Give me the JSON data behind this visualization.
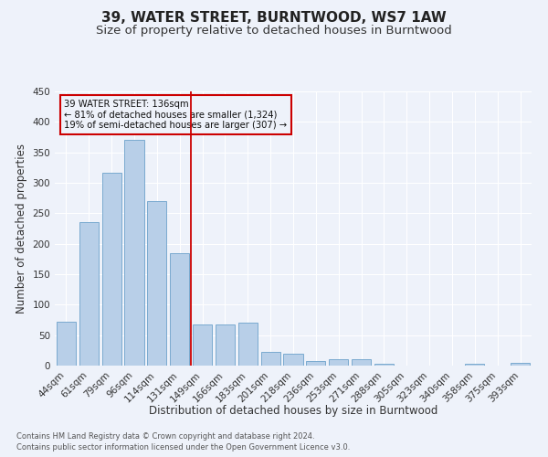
{
  "title": "39, WATER STREET, BURNTWOOD, WS7 1AW",
  "subtitle": "Size of property relative to detached houses in Burntwood",
  "xlabel": "Distribution of detached houses by size in Burntwood",
  "ylabel": "Number of detached properties",
  "categories": [
    "44sqm",
    "61sqm",
    "79sqm",
    "96sqm",
    "114sqm",
    "131sqm",
    "149sqm",
    "166sqm",
    "183sqm",
    "201sqm",
    "218sqm",
    "236sqm",
    "253sqm",
    "271sqm",
    "288sqm",
    "305sqm",
    "323sqm",
    "340sqm",
    "358sqm",
    "375sqm",
    "393sqm"
  ],
  "values": [
    72,
    236,
    317,
    370,
    270,
    184,
    68,
    68,
    70,
    23,
    19,
    7,
    10,
    10,
    3,
    0,
    0,
    0,
    3,
    0,
    4
  ],
  "bar_color": "#b8cfe8",
  "bar_edge_color": "#7aaad0",
  "vline_x": 5.5,
  "vline_color": "#cc0000",
  "annotation_title": "39 WATER STREET: 136sqm",
  "annotation_line1": "← 81% of detached houses are smaller (1,324)",
  "annotation_line2": "19% of semi-detached houses are larger (307) →",
  "annotation_box_color": "#cc0000",
  "ylim": [
    0,
    450
  ],
  "yticks": [
    0,
    50,
    100,
    150,
    200,
    250,
    300,
    350,
    400,
    450
  ],
  "footnote1": "Contains HM Land Registry data © Crown copyright and database right 2024.",
  "footnote2": "Contains public sector information licensed under the Open Government Licence v3.0.",
  "bg_color": "#eef2fa",
  "grid_color": "#ffffff",
  "title_fontsize": 11,
  "subtitle_fontsize": 9.5,
  "ylabel_fontsize": 8.5,
  "xlabel_fontsize": 8.5,
  "tick_fontsize": 7.5,
  "footnote_fontsize": 6.0
}
